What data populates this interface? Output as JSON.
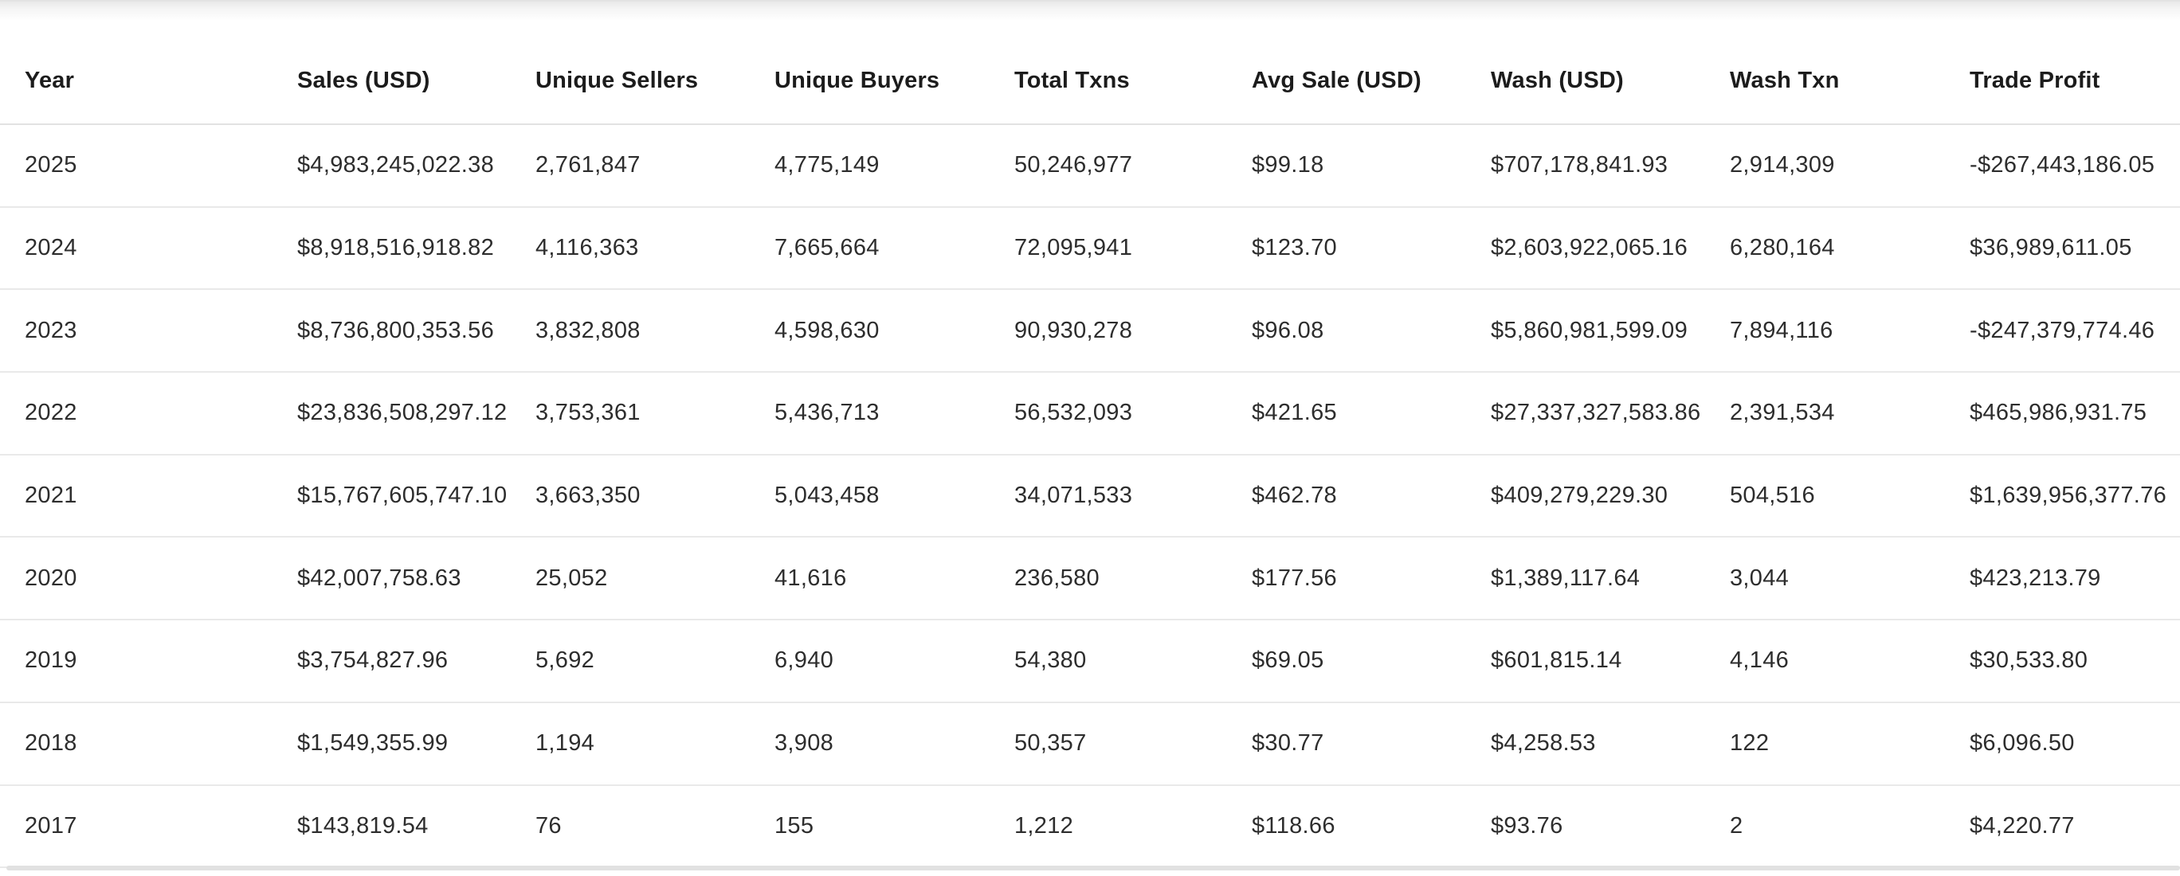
{
  "table": {
    "columns": [
      {
        "key": "year",
        "label": "Year"
      },
      {
        "key": "sales_usd",
        "label": "Sales (USD)"
      },
      {
        "key": "unique_sellers",
        "label": "Unique Sellers"
      },
      {
        "key": "unique_buyers",
        "label": "Unique Buyers"
      },
      {
        "key": "total_txns",
        "label": "Total Txns"
      },
      {
        "key": "avg_sale_usd",
        "label": "Avg Sale (USD)"
      },
      {
        "key": "wash_usd",
        "label": "Wash (USD)"
      },
      {
        "key": "wash_txn",
        "label": "Wash Txn"
      },
      {
        "key": "trade_profit",
        "label": "Trade Profit"
      }
    ],
    "rows": [
      [
        "2025",
        "$4,983,245,022.38",
        "2,761,847",
        "4,775,149",
        "50,246,977",
        "$99.18",
        "$707,178,841.93",
        "2,914,309",
        "-$267,443,186.05"
      ],
      [
        "2024",
        "$8,918,516,918.82",
        "4,116,363",
        "7,665,664",
        "72,095,941",
        "$123.70",
        "$2,603,922,065.16",
        "6,280,164",
        "$36,989,611.05"
      ],
      [
        "2023",
        "$8,736,800,353.56",
        "3,832,808",
        "4,598,630",
        "90,930,278",
        "$96.08",
        "$5,860,981,599.09",
        "7,894,116",
        "-$247,379,774.46"
      ],
      [
        "2022",
        "$23,836,508,297.12",
        "3,753,361",
        "5,436,713",
        "56,532,093",
        "$421.65",
        "$27,337,327,583.86",
        "2,391,534",
        "$465,986,931.75"
      ],
      [
        "2021",
        "$15,767,605,747.10",
        "3,663,350",
        "5,043,458",
        "34,071,533",
        "$462.78",
        "$409,279,229.30",
        "504,516",
        "$1,639,956,377.76"
      ],
      [
        "2020",
        "$42,007,758.63",
        "25,052",
        "41,616",
        "236,580",
        "$177.56",
        "$1,389,117.64",
        "3,044",
        "$423,213.79"
      ],
      [
        "2019",
        "$3,754,827.96",
        "5,692",
        "6,940",
        "54,380",
        "$69.05",
        "$601,815.14",
        "4,146",
        "$30,533.80"
      ],
      [
        "2018",
        "$1,549,355.99",
        "1,194",
        "3,908",
        "50,357",
        "$30.77",
        "$4,258.53",
        "122",
        "$6,096.50"
      ],
      [
        "2017",
        "$143,819.54",
        "76",
        "155",
        "1,212",
        "$118.66",
        "$93.76",
        "2",
        "$4,220.77"
      ]
    ]
  },
  "colors": {
    "background": "#ffffff",
    "header_text": "#1c1c1c",
    "cell_text": "#2d2d2d",
    "row_separator": "#e9e9e9",
    "header_separator": "#e2e2e2",
    "top_edge": "#e9e9e9",
    "scrollbar_track": "#e1e1e1"
  }
}
